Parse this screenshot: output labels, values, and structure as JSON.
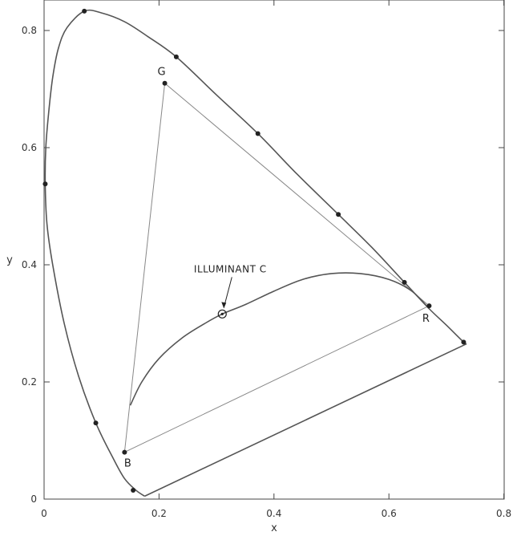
{
  "chart_data": {
    "type": "line",
    "title": "",
    "xlabel": "x",
    "ylabel": "y",
    "xlim": [
      0,
      0.8
    ],
    "ylim": [
      0,
      0.85
    ],
    "grid": false,
    "x_ticks": [
      0,
      0.2,
      0.4,
      0.6,
      0.8
    ],
    "x_tick_labels": [
      "0",
      "0.2",
      "0.4",
      "0.6",
      "0.8"
    ],
    "y_ticks": [
      0,
      0.2,
      0.4,
      0.6,
      0.8
    ],
    "y_tick_labels": [
      "0",
      "0.2",
      "0.4",
      "0.6",
      "0.8"
    ],
    "series": [
      {
        "role": "spectral-locus",
        "points": [
          [
            0.175,
            0.005
          ],
          [
            0.16,
            0.015
          ],
          [
            0.14,
            0.035
          ],
          [
            0.12,
            0.07
          ],
          [
            0.09,
            0.13
          ],
          [
            0.06,
            0.21
          ],
          [
            0.035,
            0.3
          ],
          [
            0.015,
            0.4
          ],
          [
            0.005,
            0.47
          ],
          [
            0.002,
            0.538
          ],
          [
            0.003,
            0.6
          ],
          [
            0.008,
            0.66
          ],
          [
            0.015,
            0.72
          ],
          [
            0.025,
            0.77
          ],
          [
            0.04,
            0.805
          ],
          [
            0.07,
            0.833
          ],
          [
            0.1,
            0.83
          ],
          [
            0.14,
            0.815
          ],
          [
            0.18,
            0.79
          ],
          [
            0.23,
            0.755
          ],
          [
            0.3,
            0.69
          ],
          [
            0.372,
            0.624
          ],
          [
            0.44,
            0.555
          ],
          [
            0.512,
            0.486
          ],
          [
            0.57,
            0.43
          ],
          [
            0.627,
            0.37
          ],
          [
            0.67,
            0.325
          ],
          [
            0.7,
            0.297
          ],
          [
            0.73,
            0.268
          ],
          [
            0.735,
            0.265
          ]
        ]
      },
      {
        "role": "purple-line",
        "points": [
          [
            0.735,
            0.265
          ],
          [
            0.175,
            0.005
          ]
        ]
      },
      {
        "role": "gamut-triangle",
        "points": [
          [
            0.14,
            0.08
          ],
          [
            0.21,
            0.71
          ],
          [
            0.67,
            0.33
          ],
          [
            0.14,
            0.08
          ]
        ]
      },
      {
        "role": "blackbody-locus",
        "points": [
          [
            0.67,
            0.325
          ],
          [
            0.64,
            0.355
          ],
          [
            0.6,
            0.375
          ],
          [
            0.55,
            0.385
          ],
          [
            0.5,
            0.385
          ],
          [
            0.45,
            0.375
          ],
          [
            0.4,
            0.355
          ],
          [
            0.35,
            0.332
          ],
          [
            0.31,
            0.316
          ],
          [
            0.28,
            0.3
          ],
          [
            0.24,
            0.275
          ],
          [
            0.2,
            0.24
          ],
          [
            0.17,
            0.2
          ],
          [
            0.15,
            0.16
          ]
        ]
      }
    ],
    "markers": [
      [
        0.07,
        0.833
      ],
      [
        0.23,
        0.755
      ],
      [
        0.372,
        0.624
      ],
      [
        0.512,
        0.486
      ],
      [
        0.627,
        0.37
      ],
      [
        0.73,
        0.268
      ],
      [
        0.002,
        0.538
      ],
      [
        0.09,
        0.13
      ],
      [
        0.155,
        0.015
      ],
      [
        0.21,
        0.71
      ],
      [
        0.14,
        0.08
      ],
      [
        0.67,
        0.33
      ]
    ],
    "point_labels": [
      {
        "text": "G",
        "x": 0.21,
        "y": 0.71
      },
      {
        "text": "B",
        "x": 0.14,
        "y": 0.08
      },
      {
        "text": "R",
        "x": 0.67,
        "y": 0.33
      }
    ],
    "annotation": {
      "text": "ILLUMINANT C",
      "x": 0.31,
      "y": 0.316
    },
    "colors": {
      "curve": "#555555",
      "triangle": "#888888",
      "marker": "#222222",
      "axis": "#444444"
    }
  }
}
